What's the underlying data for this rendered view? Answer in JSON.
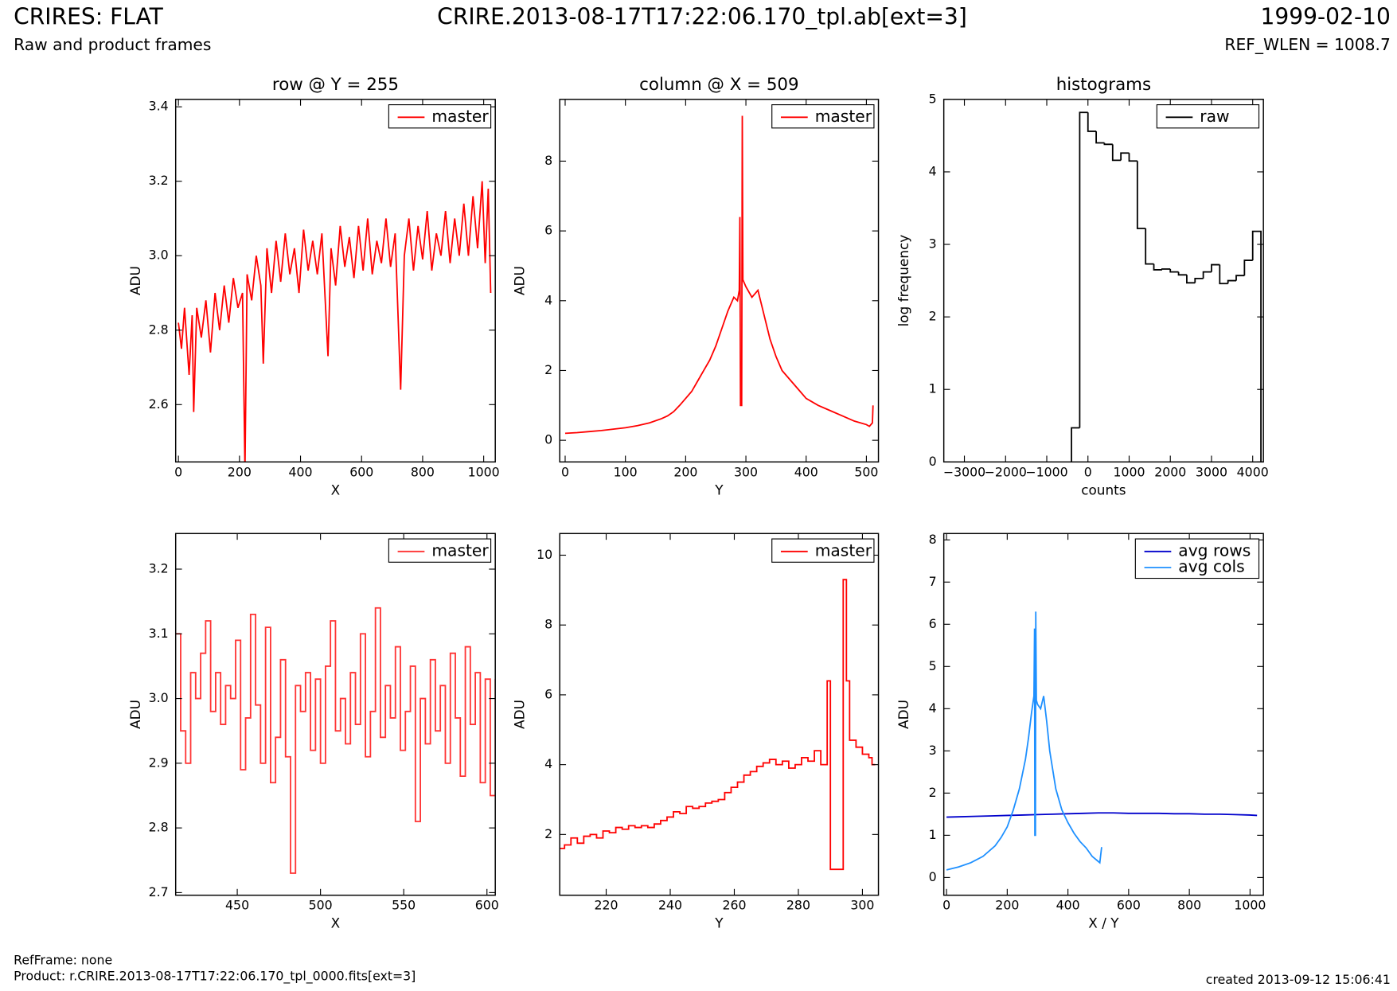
{
  "header": {
    "title": "CRIRES: FLAT",
    "subtitle": "Raw and product frames",
    "file": "CRIRE.2013-08-17T17:22:06.170_tpl.ab[ext=3]",
    "date": "1999-02-10",
    "ref_wlen": "REF_WLEN = 1008.7"
  },
  "footer": {
    "ref_frame": "RefFrame: none",
    "product": "Product: r.CRIRE.2013-08-17T17:22:06.170_tpl_0000.fits[ext=3]",
    "created": "created 2013-09-12 15:06:41"
  },
  "chart_data": [
    {
      "type": "line",
      "title": "row @ Y = 255",
      "xlabel": "X",
      "ylabel": "ADU",
      "legend": "upper right",
      "step": false,
      "xlim": [
        -9,
        1038
      ],
      "ylim": [
        2.446,
        3.42
      ],
      "xticks": [
        0,
        200,
        400,
        600,
        800,
        1000
      ],
      "yticks": [
        2.6,
        2.8,
        {
          "value": 3,
          "label": "3.0"
        },
        3.2,
        3.4
      ],
      "x": [
        0,
        10,
        20,
        35,
        45,
        50,
        60,
        75,
        90,
        105,
        120,
        135,
        150,
        165,
        180,
        195,
        210,
        218,
        225,
        240,
        255,
        270,
        278,
        290,
        305,
        320,
        335,
        350,
        365,
        380,
        395,
        410,
        425,
        440,
        455,
        470,
        490,
        500,
        515,
        530,
        545,
        560,
        575,
        590,
        605,
        620,
        635,
        650,
        665,
        680,
        695,
        710,
        728,
        740,
        755,
        770,
        785,
        800,
        815,
        830,
        845,
        860,
        875,
        890,
        905,
        920,
        935,
        950,
        965,
        980,
        995,
        1005,
        1015,
        1023
      ],
      "series": [
        {
          "name": "master",
          "color": "#ff0000",
          "values": [
            2.82,
            2.75,
            2.86,
            2.68,
            2.84,
            2.58,
            2.86,
            2.78,
            2.88,
            2.74,
            2.9,
            2.8,
            2.92,
            2.82,
            2.94,
            2.86,
            2.9,
            2.42,
            2.95,
            2.88,
            3.0,
            2.92,
            2.71,
            3.02,
            2.9,
            3.04,
            2.93,
            3.06,
            2.95,
            3.02,
            2.9,
            3.07,
            2.96,
            3.04,
            2.95,
            3.06,
            2.73,
            3.02,
            2.92,
            3.08,
            2.97,
            3.05,
            2.94,
            3.08,
            2.96,
            3.1,
            2.95,
            3.04,
            2.98,
            3.1,
            2.97,
            3.06,
            2.64,
            3.0,
            3.1,
            2.96,
            3.08,
            2.99,
            3.12,
            2.96,
            3.06,
            3.0,
            3.12,
            2.98,
            3.1,
            3.0,
            3.14,
            3.0,
            3.16,
            3.02,
            3.2,
            2.98,
            3.18,
            2.9
          ]
        }
      ]
    },
    {
      "type": "line",
      "title": "column @ X = 509",
      "xlabel": "Y",
      "ylabel": "ADU",
      "legend": "upper right",
      "step": false,
      "xlim": [
        -9,
        520
      ],
      "ylim": [
        -0.62,
        9.77
      ],
      "xticks": [
        0,
        100,
        200,
        300,
        400,
        500
      ],
      "yticks": [
        0,
        2,
        4,
        6,
        8
      ],
      "x": [
        0,
        20,
        40,
        60,
        80,
        100,
        120,
        140,
        160,
        170,
        180,
        190,
        200,
        210,
        220,
        230,
        240,
        250,
        260,
        270,
        280,
        286,
        289,
        290,
        291,
        293,
        294,
        295,
        300,
        310,
        320,
        330,
        340,
        350,
        360,
        370,
        380,
        390,
        400,
        420,
        440,
        460,
        480,
        500,
        505,
        510,
        511
      ],
      "series": [
        {
          "name": "master",
          "color": "#ff0000",
          "values": [
            0.2,
            0.22,
            0.25,
            0.28,
            0.32,
            0.36,
            0.42,
            0.5,
            0.62,
            0.7,
            0.82,
            1.0,
            1.2,
            1.4,
            1.7,
            2.0,
            2.3,
            2.7,
            3.2,
            3.7,
            4.1,
            4.0,
            4.3,
            6.4,
            1.0,
            1.0,
            9.3,
            4.6,
            4.4,
            4.1,
            4.3,
            3.6,
            2.9,
            2.4,
            2.0,
            1.8,
            1.6,
            1.4,
            1.2,
            1.0,
            0.85,
            0.7,
            0.55,
            0.45,
            0.4,
            0.5,
            1.0
          ]
        }
      ]
    },
    {
      "type": "histogram",
      "title": "histograms",
      "xlabel": "counts",
      "ylabel": "log frequency",
      "legend": "upper right",
      "name": "raw",
      "color": "#000000",
      "xlim": [
        -3500,
        4260
      ],
      "ylim": [
        0,
        5
      ],
      "xticks": [
        {
          "value": -3000,
          "label": "−3000"
        },
        {
          "value": -2000,
          "label": "−2000"
        },
        {
          "value": -1000,
          "label": "−1000"
        },
        0,
        1000,
        2000,
        3000,
        4000
      ],
      "yticks": [
        0,
        1,
        2,
        3,
        4,
        5
      ],
      "bins": [
        -400,
        -200,
        0,
        200,
        400,
        600,
        800,
        1000,
        1200,
        1400,
        1600,
        1800,
        2000,
        2200,
        2400,
        2600,
        2800,
        3000,
        3200,
        3400,
        3600,
        3800,
        4000,
        4200
      ],
      "values": [
        0.47,
        4.82,
        4.56,
        4.4,
        4.38,
        4.16,
        4.26,
        4.15,
        3.22,
        2.73,
        2.65,
        2.66,
        2.62,
        2.58,
        2.47,
        2.53,
        2.62,
        2.72,
        2.46,
        2.5,
        2.57,
        2.78,
        3.18
      ]
    },
    {
      "type": "line",
      "xlabel": "X",
      "ylabel": "ADU",
      "legend": "upper right",
      "step": true,
      "xlim": [
        413,
        605
      ],
      "ylim": [
        2.696,
        3.255
      ],
      "xticks": [
        450,
        500,
        550,
        600
      ],
      "yticks": [
        2.7,
        2.8,
        2.9,
        {
          "value": 3,
          "label": "3.0"
        },
        3.1,
        3.2
      ],
      "x": [
        413,
        416,
        419,
        422,
        425,
        428,
        431,
        434,
        437,
        440,
        443,
        446,
        449,
        452,
        455,
        458,
        461,
        464,
        467,
        470,
        473,
        476,
        479,
        482,
        485,
        488,
        491,
        494,
        497,
        500,
        503,
        506,
        509,
        512,
        515,
        518,
        521,
        524,
        527,
        530,
        533,
        536,
        539,
        542,
        545,
        548,
        551,
        554,
        557,
        560,
        563,
        566,
        569,
        572,
        575,
        578,
        581,
        584,
        587,
        590,
        593,
        596,
        599,
        602,
        605
      ],
      "series": [
        {
          "name": "master",
          "color": "#ff3333",
          "values": [
            3.1,
            2.95,
            2.9,
            3.04,
            3.0,
            3.07,
            3.12,
            2.98,
            3.04,
            2.96,
            3.02,
            3.0,
            3.09,
            2.89,
            2.97,
            3.13,
            2.99,
            2.9,
            3.11,
            2.87,
            2.94,
            3.06,
            2.91,
            2.73,
            3.02,
            2.98,
            3.04,
            2.92,
            3.03,
            2.9,
            3.05,
            3.12,
            2.95,
            3.0,
            2.93,
            3.04,
            2.96,
            3.1,
            2.91,
            2.98,
            3.14,
            2.94,
            3.02,
            2.97,
            3.08,
            2.92,
            2.98,
            3.05,
            2.81,
            3.0,
            2.93,
            3.06,
            2.95,
            3.02,
            2.9,
            3.07,
            2.97,
            2.88,
            3.08,
            2.96,
            3.04,
            2.87,
            3.03,
            2.85,
            3.03
          ]
        }
      ]
    },
    {
      "type": "line",
      "xlabel": "Y",
      "ylabel": "ADU",
      "legend": "upper right",
      "step": true,
      "xlim": [
        205.5,
        305
      ],
      "ylim": [
        0.26,
        10.62
      ],
      "xticks": [
        220,
        240,
        260,
        280,
        300
      ],
      "yticks": [
        2,
        4,
        6,
        8,
        10
      ],
      "x": [
        205,
        207,
        209,
        211,
        213,
        215,
        217,
        219,
        221,
        223,
        225,
        227,
        229,
        231,
        233,
        235,
        237,
        239,
        241,
        243,
        245,
        247,
        249,
        251,
        253,
        255,
        257,
        259,
        261,
        263,
        265,
        267,
        269,
        271,
        273,
        275,
        277,
        279,
        281,
        283,
        285,
        287,
        289,
        290,
        294,
        295,
        296,
        298,
        300,
        302,
        303,
        304
      ],
      "series": [
        {
          "name": "master",
          "color": "#ff0000",
          "values": [
            1.6,
            1.7,
            1.9,
            1.75,
            1.95,
            2.0,
            1.9,
            2.1,
            2.05,
            2.2,
            2.15,
            2.25,
            2.2,
            2.25,
            2.2,
            2.3,
            2.4,
            2.5,
            2.65,
            2.6,
            2.8,
            2.75,
            2.8,
            2.9,
            2.95,
            3.0,
            3.2,
            3.35,
            3.5,
            3.7,
            3.8,
            3.95,
            4.05,
            4.15,
            4.0,
            4.1,
            3.9,
            4.0,
            4.2,
            4.1,
            4.4,
            4.0,
            6.4,
            1.0,
            9.3,
            6.4,
            4.7,
            4.5,
            4.3,
            4.2,
            4.0,
            4.0
          ]
        }
      ]
    },
    {
      "type": "line",
      "xlabel": "X / Y",
      "ylabel": "ADU",
      "legend": "upper right",
      "step": false,
      "xlim": [
        -9,
        1044
      ],
      "ylim": [
        -0.42,
        8.15
      ],
      "xticks": [
        0,
        200,
        400,
        600,
        800,
        1000
      ],
      "yticks": [
        0,
        1,
        2,
        3,
        4,
        5,
        6,
        7,
        8
      ],
      "series": [
        {
          "name": "avg rows",
          "color": "#0000cc",
          "x": [
            0,
            50,
            100,
            150,
            200,
            250,
            300,
            350,
            400,
            450,
            500,
            550,
            600,
            650,
            700,
            750,
            800,
            850,
            900,
            950,
            1000,
            1023
          ],
          "values": [
            1.43,
            1.44,
            1.45,
            1.46,
            1.47,
            1.48,
            1.49,
            1.5,
            1.51,
            1.52,
            1.53,
            1.53,
            1.52,
            1.52,
            1.52,
            1.51,
            1.51,
            1.5,
            1.5,
            1.49,
            1.48,
            1.47
          ]
        },
        {
          "name": "avg cols",
          "color": "#1e90ff",
          "x": [
            0,
            40,
            80,
            120,
            160,
            180,
            200,
            220,
            240,
            260,
            270,
            280,
            288,
            290,
            291,
            293,
            294,
            296,
            300,
            310,
            320,
            330,
            340,
            360,
            380,
            400,
            420,
            440,
            460,
            480,
            500,
            505,
            511
          ],
          "values": [
            0.18,
            0.25,
            0.35,
            0.5,
            0.75,
            0.95,
            1.2,
            1.6,
            2.1,
            2.8,
            3.3,
            3.9,
            4.3,
            5.9,
            1.0,
            1.0,
            6.3,
            4.2,
            4.1,
            4.0,
            4.3,
            3.7,
            3.0,
            2.1,
            1.6,
            1.3,
            1.05,
            0.85,
            0.7,
            0.5,
            0.38,
            0.35,
            0.72
          ]
        }
      ]
    }
  ]
}
